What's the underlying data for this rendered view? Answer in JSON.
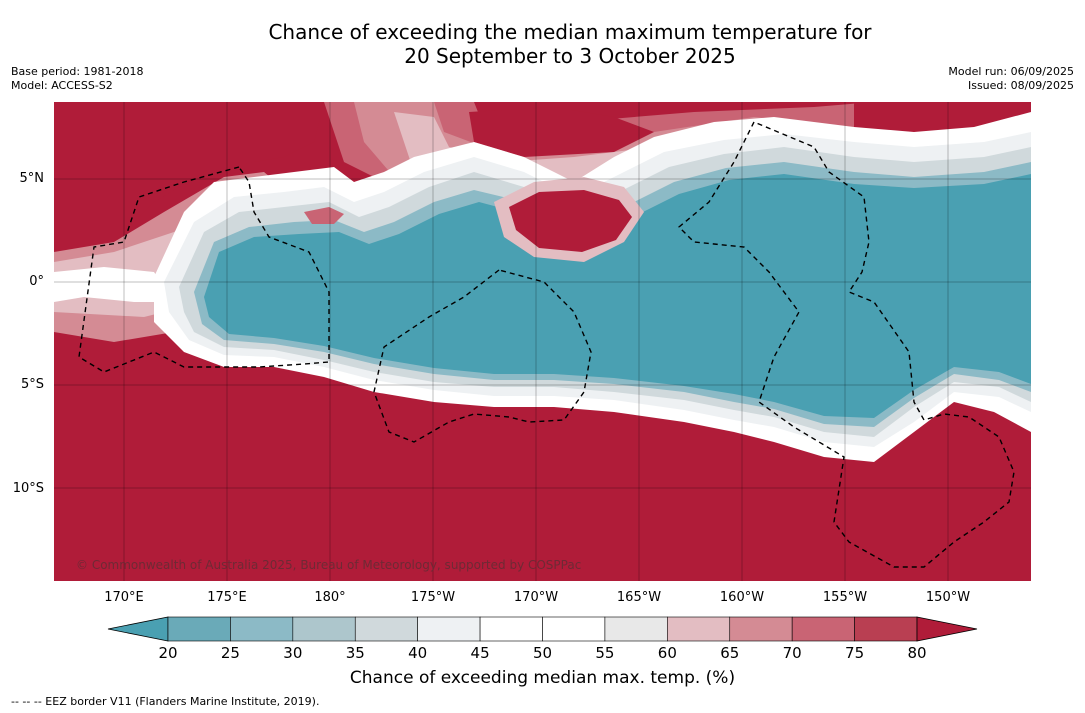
{
  "title_line1": "Chance of exceeding the median maximum temperature for",
  "title_line2": "20 September to 3 October 2025",
  "base_period": "Base period: 1981-2018",
  "model": "Model: ACCESS-S2",
  "model_run": "Model run: 06/09/2025",
  "issued": "Issued: 08/09/2025",
  "copyright": "© Commonwealth of Australia 2025, Bureau of Meteorology, supported by COSPPac",
  "lat_labels": [
    "5°N",
    "0°",
    "5°S",
    "10°S"
  ],
  "lon_labels": [
    "170°E",
    "175°E",
    "180°",
    "175°W",
    "170°W",
    "165°W",
    "160°W",
    "155°W",
    "150°W"
  ],
  "colorbar": {
    "ticks": [
      "20",
      "25",
      "30",
      "35",
      "40",
      "45",
      "50",
      "55",
      "60",
      "65",
      "70",
      "75",
      "80"
    ],
    "title": "Chance of exceeding median max. temp. (%)",
    "colors": [
      "#4aa0b2",
      "#6aaab8",
      "#8cbac6",
      "#adc6cc",
      "#d0d9dc",
      "#eef1f3",
      "#ffffff",
      "#ffffff",
      "#e8e8e8",
      "#e3bdc2",
      "#d48b94",
      "#c96474",
      "#b93f52",
      "#b01c39"
    ]
  },
  "footnote": "--  --  -- EEZ border V11 (Flanders Marine Institute, 2019)."
}
